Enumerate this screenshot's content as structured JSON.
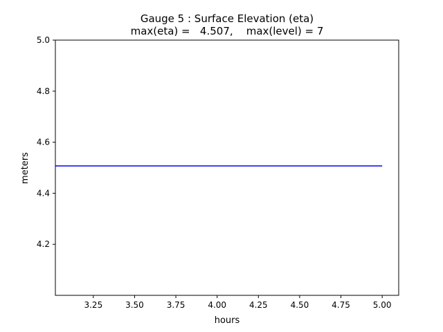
{
  "chart_data": {
    "type": "line",
    "title_line1": "Gauge 5 : Surface Elevation (eta)",
    "title_line2": "max(eta) =   4.507,    max(level) = 7",
    "xlabel": "hours",
    "ylabel": "meters",
    "xlim": [
      3.02,
      5.1
    ],
    "ylim": [
      4.0,
      5.0
    ],
    "x_ticks": [
      3.25,
      3.5,
      3.75,
      4.0,
      4.25,
      4.5,
      4.75,
      5.0
    ],
    "x_tick_labels": [
      "3.25",
      "3.50",
      "3.75",
      "4.00",
      "4.25",
      "4.50",
      "4.75",
      "5.00"
    ],
    "y_ticks": [
      4.2,
      4.4,
      4.6,
      4.8,
      5.0
    ],
    "y_tick_labels": [
      "4.2",
      "4.4",
      "4.6",
      "4.8",
      "5.0"
    ],
    "grid": false,
    "series": [
      {
        "color": "#0000ff",
        "x": [
          3.02,
          5.0
        ],
        "y": [
          4.507,
          4.507
        ]
      }
    ]
  }
}
